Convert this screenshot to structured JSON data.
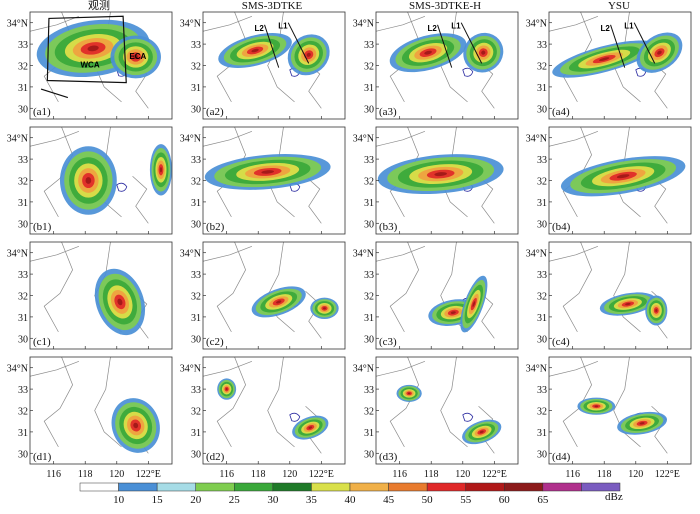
{
  "figure": {
    "column_titles": [
      "观测",
      "SMS-3DTKE",
      "SMS-3DTKE-H",
      "YSU"
    ],
    "panel_labels": [
      [
        "(a1)",
        "(a2)",
        "(a3)",
        "(a4)"
      ],
      [
        "(b1)",
        "(b2)",
        "(b3)",
        "(b4)"
      ],
      [
        "(c1)",
        "(c2)",
        "(c3)",
        "(c4)"
      ],
      [
        "(d1)",
        "(d2)",
        "(d3)",
        "(d4)"
      ]
    ],
    "y_ticks": [
      "34°N",
      "33",
      "32",
      "31",
      "30"
    ],
    "x_ticks": [
      "116",
      "118",
      "120",
      "122°E"
    ],
    "annotations": {
      "region_labels": [
        "ECA",
        "WCA"
      ],
      "line_labels": [
        "L2",
        "L1"
      ]
    }
  },
  "chart_data": {
    "type": "heatmap",
    "title": "",
    "x_range": [
      114.5,
      123.5
    ],
    "y_range": [
      29.5,
      34.5
    ],
    "colorbar": {
      "unit": "dBz",
      "ticks": [
        10,
        15,
        20,
        25,
        30,
        35,
        40,
        45,
        50,
        55,
        60,
        65
      ],
      "colors": [
        "#ffffff",
        "#4a8fd6",
        "#a6dce6",
        "#7fcd4f",
        "#3aa83a",
        "#1e7a28",
        "#d9e04a",
        "#f0b048",
        "#e87b2e",
        "#e02828",
        "#b01818",
        "#8c1a1a",
        "#b0308c",
        "#7a5cc0"
      ]
    },
    "rows": [
      "a",
      "b",
      "c",
      "d"
    ],
    "columns": [
      "观测",
      "SMS-3DTKE",
      "SMS-3DTKE-H",
      "YSU"
    ]
  },
  "colors": {
    "green": "#7fcd4f",
    "dark_green": "#3aa83a",
    "yellow": "#e3e04a",
    "orange": "#f0a040",
    "red": "#e02828",
    "dark_red": "#a01818",
    "blue": "#4a8fd6"
  }
}
